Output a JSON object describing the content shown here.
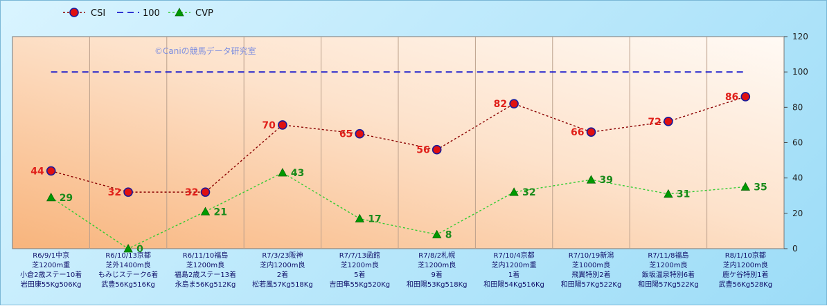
{
  "chart_data": {
    "type": "line",
    "ylim": [
      0,
      120
    ],
    "yticks": [
      0,
      20,
      40,
      60,
      80,
      100,
      120
    ],
    "watermark": "©Caniの競馬データ研究室",
    "categories": [
      [
        "R6/9/1中京",
        "芝1200m重",
        "小倉2歳ステー10着",
        "岩田康55Kg506Kg"
      ],
      [
        "R6/10/13京都",
        "芝外1400m良",
        "もみじステーク6着",
        "武豊56Kg516Kg"
      ],
      [
        "R6/11/10福島",
        "芝1200m良",
        "福島2歳ステー13着",
        "永島ま56Kg512Kg"
      ],
      [
        "R7/3/23阪神",
        "芝内1200m良",
        "2着",
        "松若風57Kg518Kg"
      ],
      [
        "R7/7/13函館",
        "芝1200m良",
        "5着",
        "吉田隼55Kg520Kg"
      ],
      [
        "R7/8/2札幌",
        "芝1200m良",
        "9着",
        "和田陽53Kg518Kg"
      ],
      [
        "R7/10/4京都",
        "芝内1200m重",
        "1着",
        "和田陽54Kg516Kg"
      ],
      [
        "R7/10/19新潟",
        "芝1000m良",
        "飛翼特別2着",
        "和田陽57Kg522Kg"
      ],
      [
        "R7/11/8福島",
        "芝1200m良",
        "飯坂温泉特別6着",
        "和田陽57Kg522Kg"
      ],
      [
        "R8/1/10京都",
        "芝内1200m良",
        "鹿ケ谷特別1着",
        "武豊56Kg528Kg"
      ]
    ],
    "series": [
      {
        "name": "CSI",
        "color": "#8b0000",
        "marker_color": "#e01010",
        "values": [
          44,
          32,
          32,
          70,
          65,
          56,
          82,
          66,
          72,
          86
        ]
      },
      {
        "name": "100",
        "color": "#1a1acc",
        "values": [
          100,
          100,
          100,
          100,
          100,
          100,
          100,
          100,
          100,
          100
        ]
      },
      {
        "name": "CVP",
        "color": "#33cc33",
        "marker_color": "#009900",
        "values": [
          29,
          0,
          21,
          43,
          17,
          8,
          32,
          39,
          31,
          35
        ]
      }
    ]
  }
}
